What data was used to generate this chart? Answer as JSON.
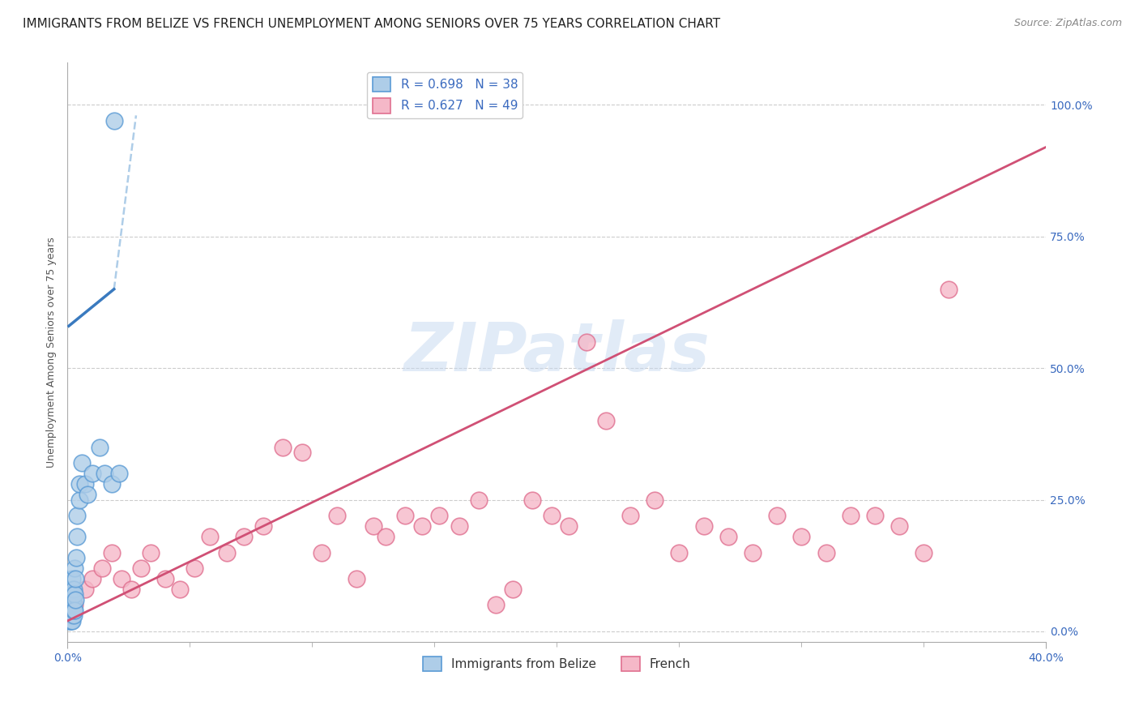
{
  "title": "IMMIGRANTS FROM BELIZE VS FRENCH UNEMPLOYMENT AMONG SENIORS OVER 75 YEARS CORRELATION CHART",
  "source": "Source: ZipAtlas.com",
  "ylabel": "Unemployment Among Seniors over 75 years",
  "xlim": [
    0.0,
    0.4
  ],
  "ylim": [
    -0.02,
    1.08
  ],
  "yticks": [
    0.0,
    0.25,
    0.5,
    0.75,
    1.0
  ],
  "ytick_labels_right": [
    "0.0%",
    "25.0%",
    "50.0%",
    "75.0%",
    "100.0%"
  ],
  "xtick_left_label": "0.0%",
  "xtick_right_label": "40.0%",
  "legend_entries": [
    {
      "label": "Immigrants from Belize",
      "R": "0.698",
      "N": "38",
      "face_color": "#aecde8",
      "edge_color": "#5b9bd5"
    },
    {
      "label": "French",
      "R": "0.627",
      "N": "49",
      "face_color": "#f5b8c8",
      "edge_color": "#e07090"
    }
  ],
  "blue_scatter_x": [
    0.0008,
    0.0009,
    0.001,
    0.001,
    0.0012,
    0.0013,
    0.0015,
    0.0015,
    0.0016,
    0.0018,
    0.0019,
    0.002,
    0.002,
    0.002,
    0.002,
    0.0022,
    0.0024,
    0.0025,
    0.0026,
    0.003,
    0.003,
    0.003,
    0.0032,
    0.0033,
    0.0035,
    0.004,
    0.004,
    0.005,
    0.005,
    0.006,
    0.007,
    0.008,
    0.01,
    0.013,
    0.015,
    0.018,
    0.019,
    0.021
  ],
  "blue_scatter_y": [
    0.02,
    0.03,
    0.02,
    0.04,
    0.05,
    0.03,
    0.06,
    0.04,
    0.02,
    0.08,
    0.03,
    0.05,
    0.07,
    0.1,
    0.02,
    0.06,
    0.03,
    0.08,
    0.04,
    0.12,
    0.07,
    0.04,
    0.1,
    0.06,
    0.14,
    0.18,
    0.22,
    0.25,
    0.28,
    0.32,
    0.28,
    0.26,
    0.3,
    0.35,
    0.3,
    0.28,
    0.97,
    0.3
  ],
  "blue_solid_trend_x": [
    0.0005,
    0.019
  ],
  "blue_solid_trend_y": [
    0.58,
    0.65
  ],
  "blue_dashed_trend_x": [
    0.019,
    0.028
  ],
  "blue_dashed_trend_y": [
    0.65,
    0.98
  ],
  "pink_scatter_x": [
    0.003,
    0.007,
    0.01,
    0.014,
    0.018,
    0.022,
    0.026,
    0.03,
    0.034,
    0.04,
    0.046,
    0.052,
    0.058,
    0.065,
    0.072,
    0.08,
    0.088,
    0.096,
    0.104,
    0.11,
    0.118,
    0.125,
    0.13,
    0.138,
    0.145,
    0.152,
    0.16,
    0.168,
    0.175,
    0.182,
    0.19,
    0.198,
    0.205,
    0.212,
    0.22,
    0.23,
    0.24,
    0.25,
    0.26,
    0.27,
    0.28,
    0.29,
    0.3,
    0.31,
    0.32,
    0.33,
    0.34,
    0.35,
    0.36
  ],
  "pink_scatter_y": [
    0.05,
    0.08,
    0.1,
    0.12,
    0.15,
    0.1,
    0.08,
    0.12,
    0.15,
    0.1,
    0.08,
    0.12,
    0.18,
    0.15,
    0.18,
    0.2,
    0.35,
    0.34,
    0.15,
    0.22,
    0.1,
    0.2,
    0.18,
    0.22,
    0.2,
    0.22,
    0.2,
    0.25,
    0.05,
    0.08,
    0.25,
    0.22,
    0.2,
    0.55,
    0.4,
    0.22,
    0.25,
    0.15,
    0.2,
    0.18,
    0.15,
    0.22,
    0.18,
    0.15,
    0.22,
    0.22,
    0.2,
    0.15,
    0.65
  ],
  "pink_trend_x": [
    0.0,
    0.4
  ],
  "pink_trend_y": [
    0.02,
    0.92
  ],
  "watermark_text": "ZIPatlas",
  "watermark_color": "#c5d8f0",
  "bg_color": "#ffffff",
  "grid_color": "#cccccc",
  "blue_trend_color": "#3a7abf",
  "blue_scatter_face": "#aecde8",
  "blue_scatter_edge": "#5b9bd5",
  "pink_trend_color": "#d05075",
  "pink_scatter_face": "#f5b8c8",
  "pink_scatter_edge": "#e07090",
  "title_fontsize": 11,
  "axis_label_fontsize": 9,
  "tick_fontsize": 10,
  "legend_fontsize": 11,
  "right_tick_color": "#3a6abf"
}
